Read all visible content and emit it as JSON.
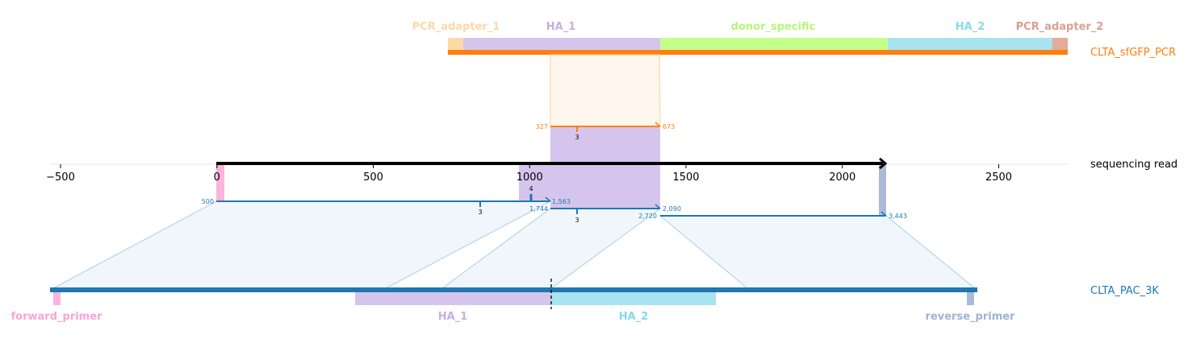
{
  "references": {
    "top": {
      "name": "CLTA_sfGFP_PCR",
      "color": "#ff7f0e",
      "features": [
        {
          "name": "PCR_adapter_1",
          "color": "#ffd8a8",
          "text_color": "#fdd8a8"
        },
        {
          "name": "HA_1",
          "color": "#d5c5ec",
          "text_color": "#c5b0e0"
        },
        {
          "name": "donor_specific",
          "color": "#c4ff8c",
          "text_color": "#b8f57a"
        },
        {
          "name": "HA_2",
          "color": "#a8e3f0",
          "text_color": "#8ad8ea"
        },
        {
          "name": "PCR_adapter_2",
          "color": "#e4ab98",
          "text_color": "#d9a090"
        }
      ]
    },
    "read": {
      "name": "sequencing read",
      "color": "#000000",
      "axis_ticks": [
        "−500",
        "0",
        "500",
        "1000",
        "1500",
        "2000",
        "2500"
      ]
    },
    "bottom": {
      "name": "CLTA_PAC_3K",
      "color": "#1f77b4",
      "features": [
        {
          "name": "forward_primer",
          "color": "#fbb4dc",
          "text_color": "#f7a5d6"
        },
        {
          "name": "HA_1",
          "color": "#d5c5ec",
          "text_color": "#c5b0e0"
        },
        {
          "name": "HA_2",
          "color": "#a8e3f0",
          "text_color": "#8ad8ea"
        },
        {
          "name": "reverse_primer",
          "color": "#aabbd8",
          "text_color": "#9fb3d4"
        }
      ]
    }
  },
  "alignments": [
    {
      "id": "top",
      "ref_start": "327",
      "ref_end": "673",
      "mismatch": "3",
      "color": "#ff7f0e"
    },
    {
      "id": "b1",
      "ref_start": "500",
      "ref_end": "1,563",
      "mismatch": "3",
      "indel": "4",
      "color": "#1f77b4"
    },
    {
      "id": "b2",
      "ref_start": "1,744",
      "ref_end": "2,090",
      "mismatch": "3",
      "color": "#1f77b4"
    },
    {
      "id": "b3",
      "ref_start": "2,720",
      "ref_end": "3,443",
      "color": "#1f77b4"
    }
  ]
}
